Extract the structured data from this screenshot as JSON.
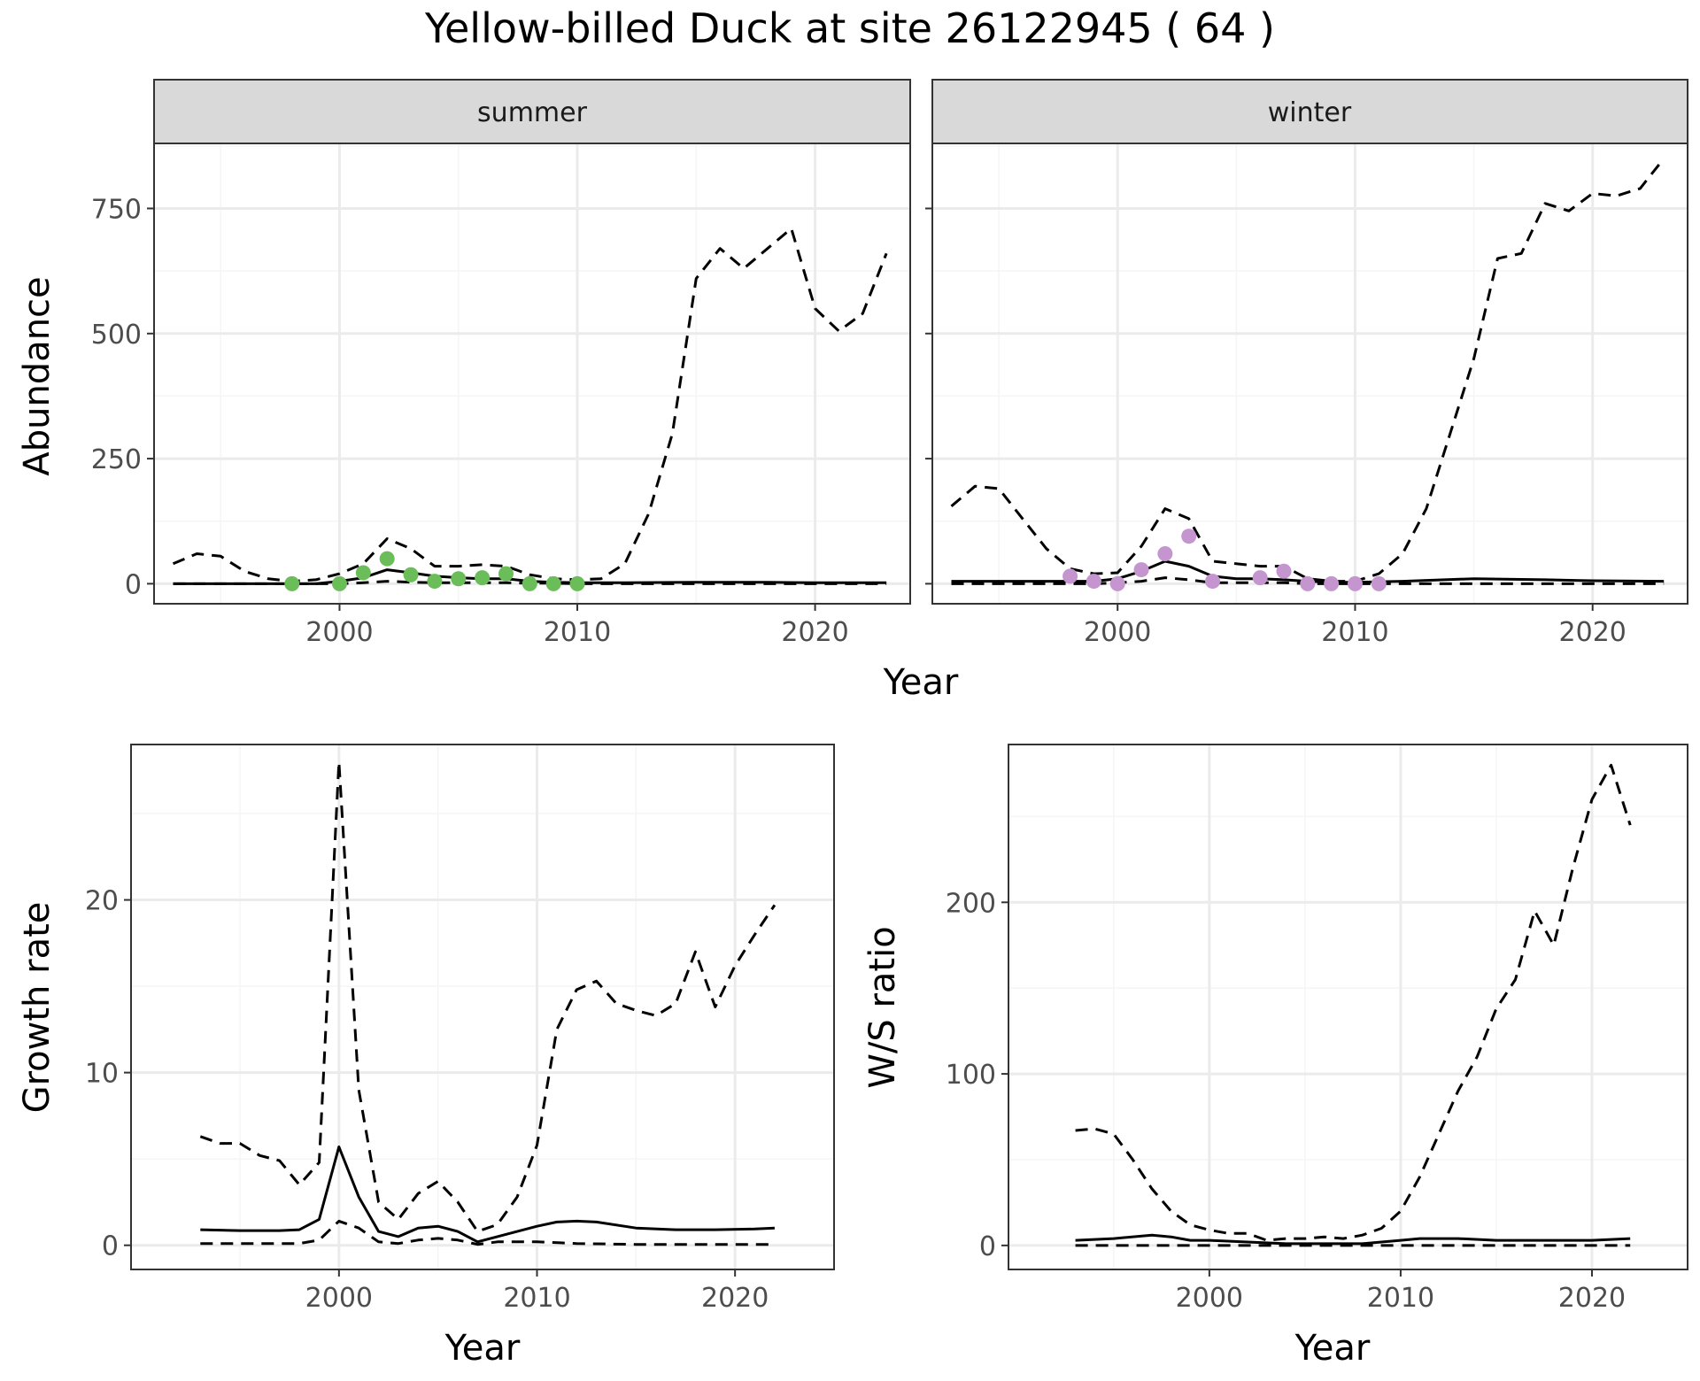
{
  "title": "Yellow-billed Duck at site 26122945 ( 64 )",
  "colors": {
    "summer_points": "#6ABD58",
    "winter_points": "#C495CE",
    "line": "#000000",
    "grid_major": "#EBEBEB",
    "grid_minor": "#F5F5F5",
    "strip_fill": "#D9D9D9",
    "axis_text": "#4D4D4D"
  },
  "abundance_xlabel": "Year",
  "abundance_ylabel": "Abundance",
  "chart_data": [
    {
      "id": "abundance-summer",
      "type": "line",
      "facet": "summer",
      "xlim": [
        1992.2,
        2024.0
      ],
      "ylim": [
        -40,
        880
      ],
      "x_ticks": [
        2000,
        2010,
        2020
      ],
      "x_tick_labels": [
        "2000",
        "2010",
        "2020"
      ],
      "y_ticks": [
        0,
        250,
        500,
        750
      ],
      "y_tick_labels": [
        "0",
        "250",
        "500",
        "750"
      ],
      "y_tick_labels_visible": true,
      "grid": true,
      "series": [
        {
          "style": "dashed",
          "x": [
            1993,
            1994,
            1995,
            1996,
            1997,
            1998,
            1999,
            2000,
            2001,
            2002,
            2003,
            2004,
            2005,
            2006,
            2007,
            2008,
            2009,
            2010,
            2011,
            2012,
            2013,
            2014,
            2015,
            2016,
            2017,
            2018,
            2019,
            2020,
            2021,
            2022,
            2023
          ],
          "y": [
            40,
            60,
            55,
            25,
            10,
            5,
            8,
            20,
            40,
            90,
            70,
            35,
            35,
            38,
            35,
            18,
            10,
            8,
            10,
            40,
            140,
            300,
            610,
            670,
            630,
            670,
            710,
            550,
            505,
            540,
            660
          ]
        },
        {
          "style": "solid",
          "x": [
            1993,
            1995,
            1997,
            1999,
            2000,
            2001,
            2002,
            2003,
            2004,
            2005,
            2006,
            2007,
            2008,
            2009,
            2010,
            2012,
            2015,
            2018,
            2020,
            2023
          ],
          "y": [
            0,
            0,
            0,
            0,
            5,
            12,
            28,
            22,
            15,
            12,
            10,
            10,
            5,
            3,
            2,
            2,
            3,
            3,
            2,
            2
          ]
        },
        {
          "style": "dashed",
          "x": [
            1993,
            1995,
            1997,
            1999,
            2000,
            2001,
            2002,
            2003,
            2004,
            2005,
            2006,
            2007,
            2008,
            2009,
            2010,
            2012,
            2015,
            2018,
            2020,
            2023
          ],
          "y": [
            0,
            0,
            0,
            0,
            0,
            2,
            5,
            3,
            2,
            2,
            2,
            2,
            1,
            1,
            0,
            0,
            0,
            0,
            0,
            0
          ]
        }
      ],
      "points": {
        "x": [
          1998,
          2000,
          2001,
          2002,
          2003,
          2004,
          2005,
          2006,
          2007,
          2008,
          2009,
          2010
        ],
        "y": [
          0,
          0,
          22,
          50,
          18,
          5,
          10,
          12,
          20,
          0,
          0,
          0
        ]
      }
    },
    {
      "id": "abundance-winter",
      "type": "line",
      "facet": "winter",
      "xlim": [
        1992.2,
        2024.0
      ],
      "ylim": [
        -40,
        880
      ],
      "x_ticks": [
        2000,
        2010,
        2020
      ],
      "x_tick_labels": [
        "2000",
        "2010",
        "2020"
      ],
      "y_ticks": [
        0,
        250,
        500,
        750
      ],
      "y_tick_labels_visible": false,
      "grid": true,
      "series": [
        {
          "style": "dashed",
          "x": [
            1993,
            1994,
            1995,
            1996,
            1997,
            1998,
            1999,
            2000,
            2001,
            2002,
            2003,
            2004,
            2005,
            2006,
            2007,
            2008,
            2009,
            2010,
            2011,
            2012,
            2013,
            2014,
            2015,
            2016,
            2017,
            2018,
            2019,
            2020,
            2021,
            2022,
            2023
          ],
          "y": [
            155,
            195,
            190,
            130,
            70,
            30,
            20,
            22,
            75,
            150,
            130,
            45,
            40,
            35,
            35,
            10,
            5,
            5,
            20,
            60,
            150,
            300,
            450,
            650,
            660,
            760,
            745,
            780,
            775,
            790,
            850
          ]
        },
        {
          "style": "solid",
          "x": [
            1993,
            1995,
            1997,
            1999,
            2000,
            2001,
            2002,
            2003,
            2004,
            2005,
            2006,
            2007,
            2008,
            2009,
            2010,
            2012,
            2015,
            2018,
            2020,
            2023
          ],
          "y": [
            5,
            5,
            5,
            5,
            10,
            25,
            45,
            35,
            15,
            10,
            10,
            8,
            5,
            3,
            3,
            5,
            10,
            8,
            6,
            5
          ]
        },
        {
          "style": "dashed",
          "x": [
            1993,
            1995,
            1997,
            1999,
            2000,
            2001,
            2002,
            2003,
            2004,
            2005,
            2006,
            2007,
            2008,
            2009,
            2010,
            2012,
            2015,
            2018,
            2020,
            2023
          ],
          "y": [
            0,
            0,
            0,
            0,
            2,
            5,
            12,
            8,
            2,
            2,
            2,
            2,
            0,
            0,
            0,
            0,
            0,
            0,
            0,
            0
          ]
        }
      ],
      "points": {
        "x": [
          1998,
          1999,
          2000,
          2001,
          2002,
          2003,
          2004,
          2006,
          2007,
          2008,
          2009,
          2010,
          2011
        ],
        "y": [
          15,
          5,
          0,
          28,
          60,
          95,
          5,
          12,
          25,
          0,
          0,
          0,
          0
        ]
      }
    },
    {
      "id": "growth-rate",
      "type": "line",
      "xlabel": "Year",
      "ylabel": "Growth rate",
      "xlim": [
        1989.5,
        2025.0
      ],
      "ylim": [
        -1.4,
        29.0
      ],
      "x_ticks": [
        2000,
        2010,
        2020
      ],
      "x_tick_labels": [
        "2000",
        "2010",
        "2020"
      ],
      "y_ticks": [
        0,
        10,
        20
      ],
      "y_tick_labels": [
        "0",
        "10",
        "20"
      ],
      "y_tick_labels_visible": true,
      "grid": true,
      "series": [
        {
          "style": "dashed",
          "x": [
            1993,
            1994,
            1995,
            1996,
            1997,
            1998,
            1999,
            2000,
            2001,
            2002,
            2003,
            2004,
            2005,
            2006,
            2007,
            2008,
            2009,
            2010,
            2011,
            2012,
            2013,
            2014,
            2015,
            2016,
            2017,
            2018,
            2019,
            2020,
            2021,
            2022
          ],
          "y": [
            6.3,
            5.9,
            5.9,
            5.2,
            4.9,
            3.5,
            4.8,
            28.0,
            9.0,
            2.5,
            1.5,
            3.0,
            3.7,
            2.5,
            0.8,
            1.2,
            2.8,
            5.8,
            12.5,
            14.8,
            15.3,
            14.0,
            13.6,
            13.3,
            14.0,
            17.0,
            13.8,
            16.2,
            18.0,
            19.7
          ]
        },
        {
          "style": "solid",
          "x": [
            1993,
            1995,
            1997,
            1998,
            1999,
            2000,
            2001,
            2002,
            2003,
            2004,
            2005,
            2006,
            2007,
            2008,
            2009,
            2010,
            2011,
            2012,
            2013,
            2015,
            2017,
            2019,
            2021,
            2022
          ],
          "y": [
            0.9,
            0.85,
            0.85,
            0.9,
            1.5,
            5.7,
            2.8,
            0.8,
            0.5,
            1.0,
            1.1,
            0.8,
            0.2,
            0.5,
            0.8,
            1.1,
            1.35,
            1.4,
            1.35,
            1.0,
            0.9,
            0.9,
            0.95,
            1.0
          ]
        },
        {
          "style": "dashed",
          "x": [
            1993,
            1995,
            1997,
            1998,
            1999,
            2000,
            2001,
            2002,
            2003,
            2004,
            2005,
            2006,
            2007,
            2008,
            2010,
            2012,
            2015,
            2018,
            2020,
            2022
          ],
          "y": [
            0.1,
            0.1,
            0.1,
            0.1,
            0.3,
            1.4,
            1.0,
            0.2,
            0.1,
            0.3,
            0.4,
            0.3,
            0.05,
            0.2,
            0.2,
            0.1,
            0.05,
            0.05,
            0.05,
            0.05
          ]
        }
      ]
    },
    {
      "id": "ws-ratio",
      "type": "line",
      "xlabel": "Year",
      "ylabel": "W/S ratio",
      "xlim": [
        1989.5,
        2025.0
      ],
      "ylim": [
        -14,
        292
      ],
      "x_ticks": [
        2000,
        2010,
        2020
      ],
      "x_tick_labels": [
        "2000",
        "2010",
        "2020"
      ],
      "y_ticks": [
        0,
        100,
        200
      ],
      "y_tick_labels": [
        "0",
        "100",
        "200"
      ],
      "y_tick_labels_visible": true,
      "grid": true,
      "series": [
        {
          "style": "dashed",
          "x": [
            1993,
            1994,
            1995,
            1996,
            1997,
            1998,
            1999,
            2000,
            2001,
            2002,
            2003,
            2004,
            2005,
            2006,
            2007,
            2008,
            2009,
            2010,
            2011,
            2012,
            2013,
            2014,
            2015,
            2016,
            2017,
            2018,
            2019,
            2020,
            2021,
            2022
          ],
          "y": [
            67,
            68,
            65,
            50,
            33,
            20,
            12,
            9,
            7,
            7,
            3,
            4,
            4,
            5,
            4,
            6,
            10,
            20,
            40,
            65,
            90,
            110,
            138,
            155,
            195,
            175,
            220,
            260,
            280,
            245
          ]
        },
        {
          "style": "solid",
          "x": [
            1993,
            1995,
            1997,
            1998,
            1999,
            2000,
            2002,
            2004,
            2006,
            2008,
            2010,
            2011,
            2013,
            2015,
            2018,
            2020,
            2022
          ],
          "y": [
            3,
            4,
            6,
            5,
            3,
            3,
            2,
            1,
            1,
            1,
            3,
            4,
            4,
            3,
            3,
            3,
            4
          ]
        },
        {
          "style": "dashed",
          "x": [
            1993,
            1995,
            1997,
            1999,
            2001,
            2004,
            2007,
            2010,
            2013,
            2016,
            2019,
            2022
          ],
          "y": [
            0,
            0,
            0,
            0,
            0,
            0,
            0,
            0,
            0,
            0,
            0,
            0
          ]
        }
      ]
    }
  ]
}
